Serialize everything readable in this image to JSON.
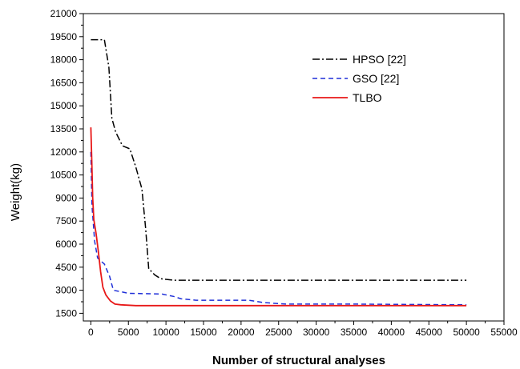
{
  "chart_data": {
    "type": "line",
    "title": "",
    "xlabel": "Number of structural analyses",
    "ylabel": "Weight(kg)",
    "xlim": [
      -1000,
      55000
    ],
    "ylim": [
      1000,
      21000
    ],
    "xticks": [
      0,
      5000,
      10000,
      15000,
      20000,
      25000,
      30000,
      35000,
      40000,
      45000,
      50000,
      55000
    ],
    "yticks": [
      1500,
      3000,
      4500,
      6000,
      7500,
      9000,
      10500,
      12000,
      13500,
      15000,
      16500,
      18000,
      19500,
      21000
    ],
    "grid": false,
    "legend_position": "top-right",
    "series": [
      {
        "name": "HPSO [22]",
        "color": "#000000",
        "style": "dash-dot",
        "points": [
          [
            0,
            19300
          ],
          [
            1800,
            19300
          ],
          [
            2400,
            17500
          ],
          [
            2800,
            14200
          ],
          [
            3300,
            13300
          ],
          [
            4200,
            12400
          ],
          [
            5200,
            12200
          ],
          [
            6000,
            11000
          ],
          [
            6800,
            9600
          ],
          [
            7300,
            7000
          ],
          [
            7700,
            4400
          ],
          [
            8500,
            4000
          ],
          [
            9300,
            3750
          ],
          [
            11000,
            3650
          ],
          [
            20000,
            3650
          ],
          [
            30000,
            3650
          ],
          [
            40000,
            3650
          ],
          [
            50000,
            3650
          ]
        ]
      },
      {
        "name": "GSO [22]",
        "color": "#1f2fd8",
        "style": "dashed",
        "points": [
          [
            0,
            12000
          ],
          [
            150,
            8500
          ],
          [
            500,
            6200
          ],
          [
            900,
            5100
          ],
          [
            1800,
            4700
          ],
          [
            2500,
            3900
          ],
          [
            3000,
            3000
          ],
          [
            4000,
            2900
          ],
          [
            5000,
            2800
          ],
          [
            9500,
            2750
          ],
          [
            11000,
            2600
          ],
          [
            12000,
            2450
          ],
          [
            14000,
            2350
          ],
          [
            21000,
            2350
          ],
          [
            23000,
            2200
          ],
          [
            26000,
            2100
          ],
          [
            35000,
            2100
          ],
          [
            50000,
            2050
          ]
        ]
      },
      {
        "name": "TLBO",
        "color": "#e81818",
        "style": "solid",
        "points": [
          [
            0,
            13600
          ],
          [
            120,
            11500
          ],
          [
            250,
            9000
          ],
          [
            400,
            7600
          ],
          [
            700,
            6700
          ],
          [
            1000,
            5500
          ],
          [
            1300,
            4200
          ],
          [
            1600,
            3200
          ],
          [
            2000,
            2700
          ],
          [
            2600,
            2300
          ],
          [
            3200,
            2100
          ],
          [
            4000,
            2050
          ],
          [
            6000,
            2000
          ],
          [
            20000,
            2000
          ],
          [
            35000,
            2000
          ],
          [
            50000,
            2000
          ]
        ]
      }
    ]
  }
}
